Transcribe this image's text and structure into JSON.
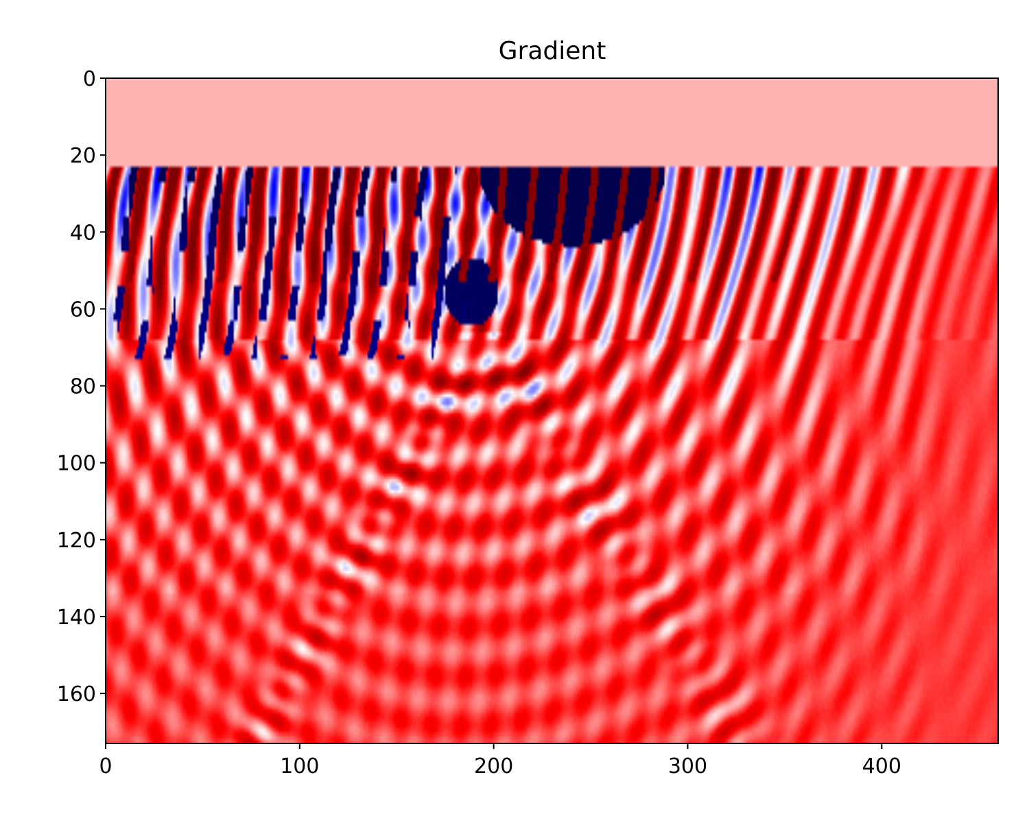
{
  "chart_data": {
    "type": "heatmap",
    "title": "Gradient",
    "xlabel": "",
    "ylabel": "",
    "xlim": [
      0,
      460
    ],
    "ylim": [
      173,
      0
    ],
    "y_axis_inverted": true,
    "grid": false,
    "legend": "none",
    "colormap": "seismic",
    "colors": {
      "negative_extreme": "#00004c",
      "negative": "#0000ff",
      "zero": "#ffffff",
      "positive": "#ff0000",
      "positive_extreme": "#800000",
      "background_positive": "#ff2424"
    },
    "xticks": [
      0,
      100,
      200,
      300,
      400
    ],
    "xtick_labels": [
      "0",
      "100",
      "200",
      "300",
      "400"
    ],
    "yticks": [
      0,
      20,
      40,
      60,
      80,
      100,
      120,
      140,
      160
    ],
    "ytick_labels": [
      "0",
      "20",
      "40",
      "60",
      "80",
      "100",
      "120",
      "140",
      "160"
    ],
    "water_layer_depth": 23,
    "water_layer_value": 0.15,
    "features": {
      "blue_wedge_center_x": 240,
      "blue_wedge_depth_range": [
        23,
        47
      ],
      "v_shape_apex_x": 195,
      "v_shape_apex_depth": 65
    }
  }
}
